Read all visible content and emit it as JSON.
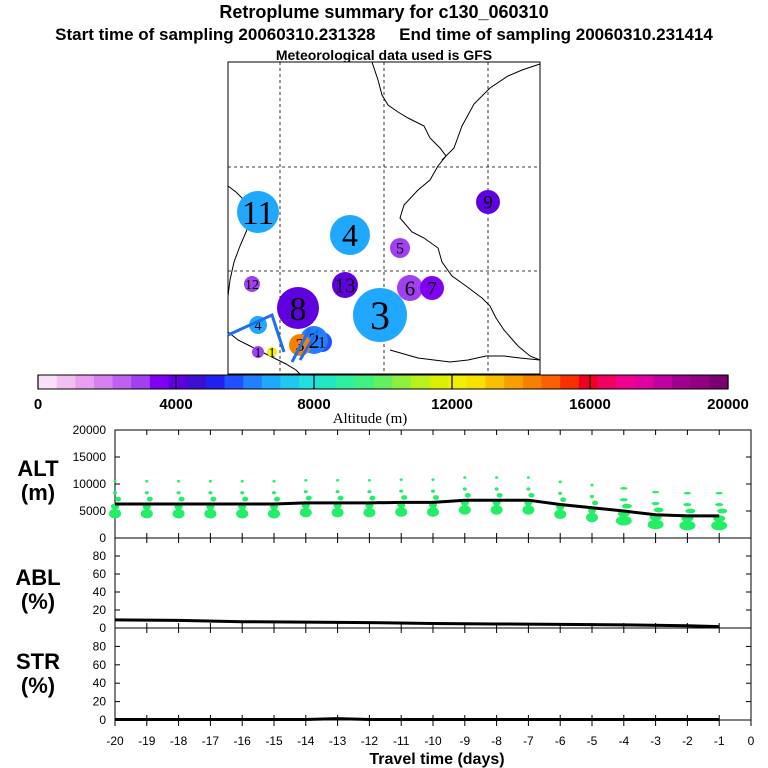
{
  "titles": {
    "line1": "Retroplume summary for c130_060310",
    "line2_start": "Start time of sampling 20060310.231328",
    "line2_end": "End time of sampling 20060310.231414",
    "line3": "Meteorological data used is GFS"
  },
  "chart_data": [
    {
      "type": "bubble-map",
      "name": "retroplume-map",
      "clusters": [
        {
          "label": "1",
          "day": 1,
          "altitude_m": 3000
        },
        {
          "label": "1",
          "day": 1,
          "altitude_m": 12000
        },
        {
          "label": "1",
          "day": 1,
          "altitude_m": 5500
        },
        {
          "label": "2",
          "day": 2,
          "altitude_m": 6000
        },
        {
          "label": "3",
          "day": 3,
          "altitude_m": 14500
        },
        {
          "label": "3",
          "day": 3,
          "altitude_m": 6500
        },
        {
          "label": "4",
          "day": 4,
          "altitude_m": 7000
        },
        {
          "label": "4",
          "day": 4,
          "altitude_m": 6800
        },
        {
          "label": "5",
          "day": 5,
          "altitude_m": 3200
        },
        {
          "label": "6",
          "day": 6,
          "altitude_m": 3100
        },
        {
          "label": "7",
          "day": 7,
          "altitude_m": 3300
        },
        {
          "label": "8",
          "day": 8,
          "altitude_m": 3900
        },
        {
          "label": "9",
          "day": 9,
          "altitude_m": 4300
        },
        {
          "label": "11",
          "day": 11,
          "altitude_m": 6500
        },
        {
          "label": "12",
          "day": 12,
          "altitude_m": 3000
        },
        {
          "label": "13",
          "day": 13,
          "altitude_m": 4200
        }
      ]
    },
    {
      "type": "colorbar",
      "name": "altitude-colorbar",
      "xlabel": "Altitude (m)",
      "range": [
        0,
        20000
      ],
      "tick_labels": [
        "0",
        "4000",
        "8000",
        "12000",
        "16000",
        "20000"
      ]
    },
    {
      "type": "line+scatter",
      "name": "alt-panel",
      "ylabel_top": "ALT",
      "ylabel_bottom": "(m)",
      "ylim": [
        0,
        20000
      ],
      "yticks": [
        "0",
        "5000",
        "10000",
        "15000",
        "20000"
      ],
      "x": [
        -20,
        -19,
        -18,
        -17,
        -16,
        -15,
        -14,
        -13,
        -12,
        -11,
        -10,
        -9,
        -8,
        -7,
        -6,
        -5,
        -4,
        -3,
        -2,
        -1
      ],
      "mean_altitude": [
        6300,
        6300,
        6300,
        6300,
        6300,
        6300,
        6500,
        6500,
        6500,
        6600,
        6600,
        7000,
        7000,
        7000,
        6200,
        5600,
        5000,
        4300,
        4100,
        4100
      ]
    },
    {
      "type": "line",
      "name": "abl-panel",
      "ylabel_top": "ABL",
      "ylabel_bottom": "(%)",
      "ylim": [
        0,
        100
      ],
      "yticks": [
        "0",
        "20",
        "40",
        "60",
        "80"
      ],
      "x": [
        -20,
        -18,
        -16,
        -14,
        -12,
        -10,
        -8,
        -6,
        -4,
        -2,
        -1
      ],
      "values": [
        9,
        8.5,
        7,
        6.5,
        6,
        5,
        4.5,
        4,
        3.5,
        2.5,
        1.5
      ]
    },
    {
      "type": "line",
      "name": "str-panel",
      "ylabel_top": "STR",
      "ylabel_bottom": "(%)",
      "ylim": [
        0,
        100
      ],
      "yticks": [
        "0",
        "20",
        "40",
        "60",
        "80"
      ],
      "x": [
        -20,
        -14,
        -13,
        -12,
        -1
      ],
      "values": [
        0.5,
        0.5,
        1.5,
        0.5,
        0.5
      ]
    },
    {
      "type": "axis",
      "name": "travel-time-axis",
      "xlabel": "Travel time (days)",
      "xlim": [
        -20,
        0
      ],
      "tick_labels": [
        "-20",
        "-19",
        "-18",
        "-17",
        "-16",
        "-15",
        "-14",
        "-13",
        "-12",
        "-11",
        "-10",
        "-9",
        "-8",
        "-7",
        "-6",
        "-5",
        "-4",
        "-3",
        "-2",
        "-1",
        "0"
      ]
    }
  ]
}
